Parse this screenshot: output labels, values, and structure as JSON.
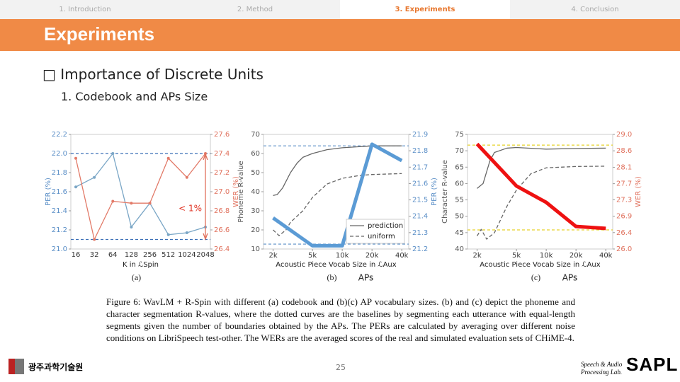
{
  "slide": {
    "tabs": [
      "1. Introduction",
      "2. Method",
      "3. Experiments",
      "4. Conclusion"
    ],
    "title": "Experiments",
    "heading": "□ Importance of Discrete Units",
    "subheading": "1. Codebook and APs Size",
    "figure_caption": "Figure 6: WavLM + R-Spin with different (a) codebook and (b)(c) AP vocabulary sizes. (b) and (c) depict the phoneme and character segmentation R-values, where the dotted curves are the baselines by segmenting each utterance with equal-length segments given the number of boundaries obtained by the APs. The PERs are calculated by averaging over different noise conditions on LibriSpeech test-other. The WERs are the averaged scores of the real and simulated evaluation sets of CHiME-4.",
    "page_number": "25",
    "logo_left": "광주과학기술원",
    "logo_right_line1": "Speech & Audio",
    "logo_right_line2": "Processing Lab.",
    "logo_right_mark": "SAPL"
  },
  "chart_data": [
    {
      "type": "line",
      "caption": "(a)",
      "x_label": "K in ℒSpin",
      "y_label": "PER (%)",
      "y2_label": "WER (%)",
      "ycolor": "#5b8fc7",
      "y2color": "#e0705c",
      "categories": [
        "16",
        "32",
        "64",
        "128",
        "256",
        "512",
        "1024",
        "2048"
      ],
      "ylim": [
        21.0,
        22.2
      ],
      "yticks": [
        {
          "value": 21,
          "label": "21.0"
        },
        21.2,
        21.4,
        21.6,
        21.8,
        {
          "value": 22,
          "label": "22.0"
        },
        22.2
      ],
      "y2lim": [
        26.4,
        27.6
      ],
      "y2ticks": [
        26.4,
        26.6,
        26.8,
        {
          "value": 27,
          "label": "27.0"
        },
        27.2,
        27.4,
        27.6
      ],
      "reference_lines": [
        {
          "axis": "y",
          "value": 22.0,
          "color": "#3b6fb6"
        },
        {
          "axis": "y",
          "value": 21.1,
          "color": "#3b6fb6"
        }
      ],
      "series": [
        {
          "axis": "y",
          "color": "#7aa6c6",
          "width": 1.3,
          "marker": true,
          "values": [
            21.65,
            21.75,
            22.0,
            21.23,
            21.48,
            21.15,
            21.17,
            21.23
          ]
        },
        {
          "axis": "y2",
          "color": "#e27a68",
          "width": 1.3,
          "marker": true,
          "values": [
            27.35,
            26.5,
            26.9,
            26.88,
            26.88,
            27.35,
            27.15,
            27.4
          ]
        }
      ],
      "annotation": "< 1%"
    },
    {
      "type": "line",
      "caption": "(b)",
      "note": "APs",
      "x_label": "Acoustic Piece Vocab Size in ℒAux",
      "y_label": "Phoneme R-value",
      "y2_label": "PER (%)",
      "ycolor": "#555555",
      "y2color": "#5b8fc7",
      "xscale": "log",
      "xlim": [
        1600,
        47000
      ],
      "xticks": [
        {
          "value": 2000,
          "label": "2k"
        },
        {
          "value": 5000,
          "label": "5k"
        },
        {
          "value": 10000,
          "label": "10k"
        },
        {
          "value": 20000,
          "label": "20k"
        },
        {
          "value": 40000,
          "label": "40k"
        }
      ],
      "ylim": [
        10,
        70
      ],
      "yticks": [
        10,
        20,
        30,
        40,
        50,
        60,
        70
      ],
      "y2lim": [
        21.2,
        21.9
      ],
      "y2ticks": [
        21.2,
        21.3,
        21.4,
        21.5,
        21.6,
        21.7,
        21.8,
        21.9
      ],
      "reference_lines": [
        {
          "axis": "y2",
          "value": 21.83,
          "color": "#5b8fc7"
        },
        {
          "axis": "y2",
          "value": 21.23,
          "color": "#5b8fc7"
        }
      ],
      "legend": "lower right",
      "series": [
        {
          "name": "prediction",
          "axis": "y",
          "color": "#666666",
          "width": 1.3,
          "x": [
            2000,
            2200,
            2500,
            3000,
            3500,
            4000,
            5000,
            7000,
            10000,
            20000,
            40000
          ],
          "values": [
            38,
            38.5,
            42,
            50,
            55,
            58,
            60,
            62,
            63,
            64,
            64
          ]
        },
        {
          "name": "uniform",
          "axis": "y",
          "color": "#666666",
          "width": 1.3,
          "linestyle": "dashed",
          "x": [
            2000,
            2300,
            2700,
            3000,
            4000,
            5000,
            7000,
            10000,
            15000,
            20000,
            40000
          ],
          "values": [
            20,
            17,
            20,
            24,
            30,
            37,
            44,
            47,
            48.5,
            49,
            49.5
          ]
        },
        {
          "axis": "y2",
          "color": "#5b9bd5",
          "width": 5,
          "x": [
            2000,
            5000,
            10000,
            20000,
            40000
          ],
          "values": [
            21.39,
            21.22,
            21.22,
            21.84,
            21.74
          ]
        }
      ]
    },
    {
      "type": "line",
      "caption": "(c)",
      "note": "APs",
      "x_label": "Acoustic Piece Vocab Size in ℒAux",
      "y_label": "Character R-value",
      "y2_label": "WER (%)",
      "ycolor": "#555555",
      "y2color": "#e0705c",
      "xscale": "log",
      "xlim": [
        1600,
        47000
      ],
      "xticks": [
        {
          "value": 2000,
          "label": "2k"
        },
        {
          "value": 5000,
          "label": "5k"
        },
        {
          "value": 10000,
          "label": "10k"
        },
        {
          "value": 20000,
          "label": "20k"
        },
        {
          "value": 40000,
          "label": "40k"
        }
      ],
      "ylim": [
        40,
        75
      ],
      "yticks": [
        40,
        45,
        50,
        55,
        60,
        65,
        70,
        75
      ],
      "y2lim": [
        26.0,
        29.0
      ],
      "y2ticks": [
        {
          "value": 26,
          "label": "26.0"
        },
        {
          "value": 26.43,
          "label": "26.4"
        },
        {
          "value": 26.86,
          "label": "26.9"
        },
        {
          "value": 27.29,
          "label": "27.3"
        },
        {
          "value": 27.71,
          "label": "27.7"
        },
        {
          "value": 28.14,
          "label": "28.1"
        },
        {
          "value": 28.57,
          "label": "28.6"
        },
        {
          "value": 29,
          "label": "29.0"
        }
      ],
      "reference_lines": [
        {
          "axis": "y2",
          "value": 28.72,
          "color": "#e6d22a"
        },
        {
          "axis": "y2",
          "value": 26.5,
          "color": "#e6d22a"
        }
      ],
      "series": [
        {
          "axis": "y",
          "color": "#666666",
          "width": 1.3,
          "x": [
            2000,
            2300,
            2700,
            3000,
            4000,
            5000,
            10000,
            20000,
            40000
          ],
          "values": [
            58.5,
            60,
            67,
            69.5,
            70.8,
            71,
            70.5,
            70.7,
            70.8
          ]
        },
        {
          "axis": "y",
          "color": "#666666",
          "width": 1.3,
          "linestyle": "dashed",
          "x": [
            2000,
            2200,
            2500,
            3000,
            4000,
            5000,
            7000,
            10000,
            20000,
            40000
          ],
          "values": [
            44,
            46,
            43,
            45,
            53,
            58,
            63,
            64.8,
            65.2,
            65.3
          ]
        },
        {
          "axis": "y2",
          "color": "#ee1111",
          "width": 5,
          "x": [
            2000,
            5000,
            10000,
            20000,
            40000
          ],
          "values": [
            28.75,
            27.65,
            27.22,
            26.59,
            26.54
          ]
        }
      ]
    }
  ]
}
